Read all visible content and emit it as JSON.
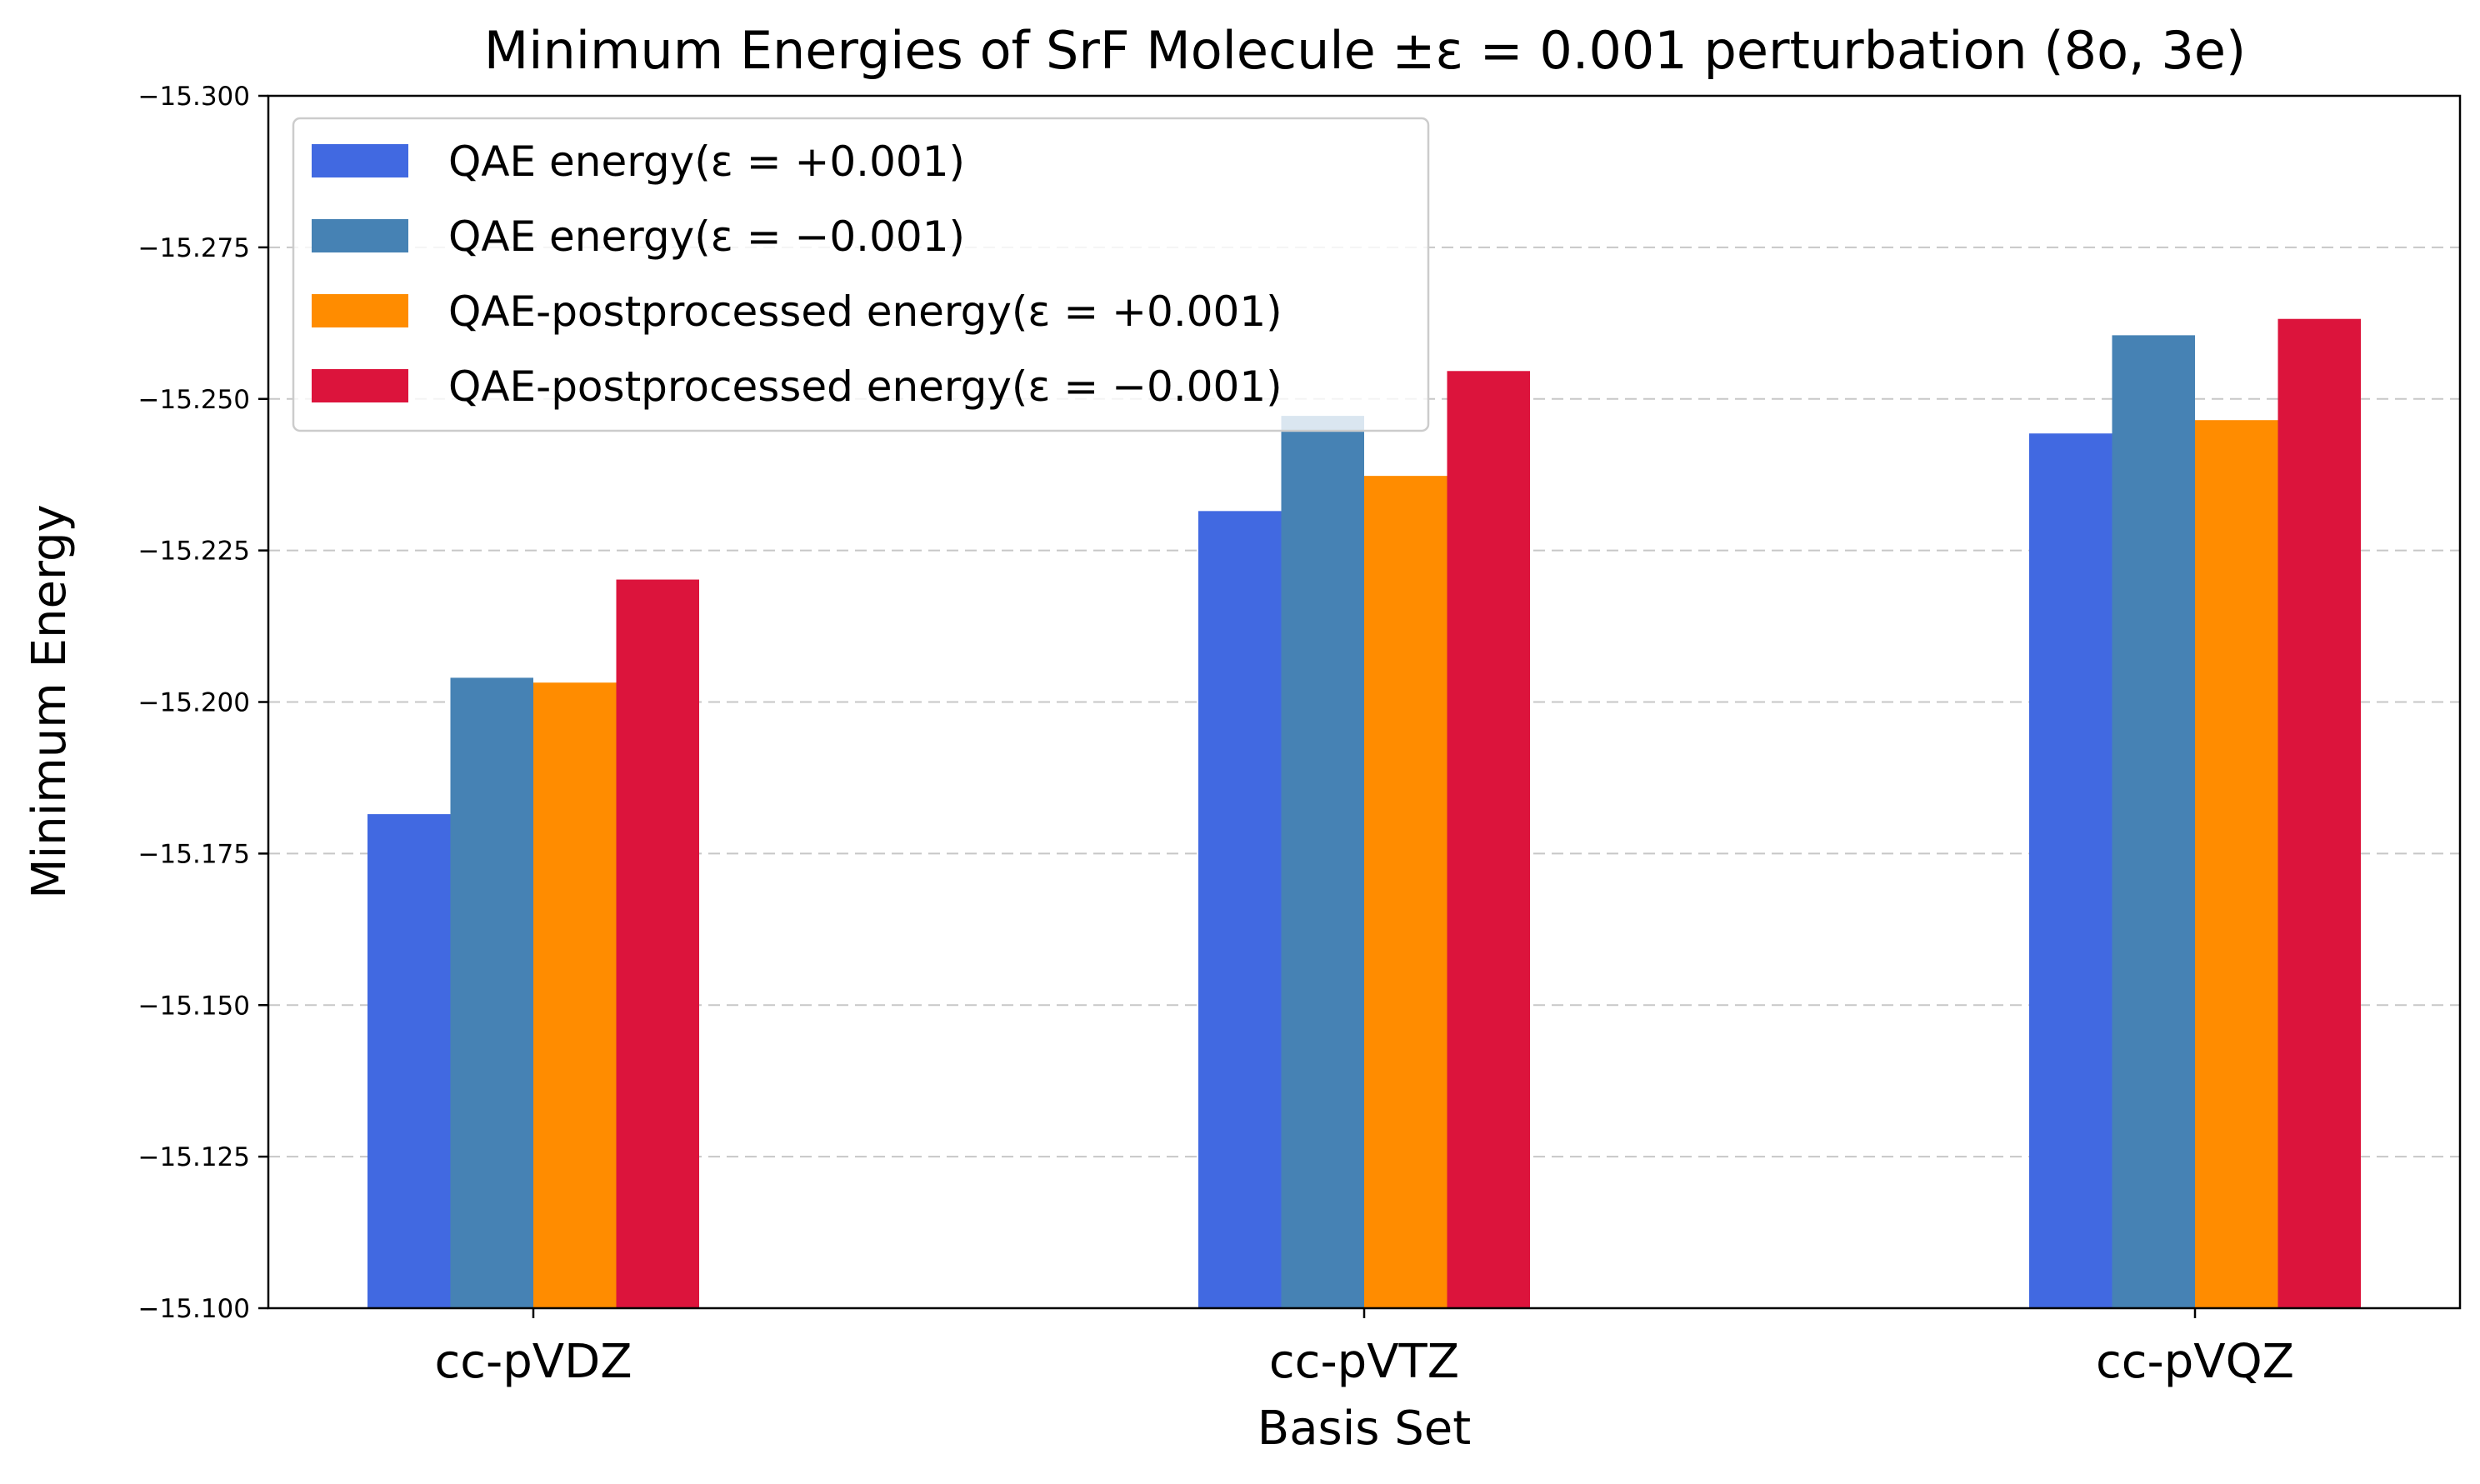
{
  "chart_data": {
    "type": "bar",
    "title": "Minimum Energies of SrF Molecule ±ε = 0.001 perturbation (8o, 3e)",
    "xlabel": "Basis Set",
    "ylabel": "Minimum Energy",
    "categories": [
      "cc-pVDZ",
      "cc-pVTZ",
      "cc-pVQZ"
    ],
    "ylim": [
      -15.1,
      -15.3
    ],
    "yticks": [
      "−15.300",
      "−15.275",
      "−15.250",
      "−15.225",
      "−15.200",
      "−15.175",
      "−15.150",
      "−15.125",
      "−15.100"
    ],
    "ytick_values": [
      -15.3,
      -15.275,
      -15.25,
      -15.225,
      -15.2,
      -15.175,
      -15.15,
      -15.125,
      -15.1
    ],
    "grid": "y-dashed",
    "legend_position": "upper-left",
    "series": [
      {
        "name": "QAE energy(ε = +0.001)",
        "color": "#4169E1",
        "values": [
          -15.1815,
          -15.2315,
          -15.2443
        ]
      },
      {
        "name": "QAE energy(ε = −0.001)",
        "color": "#4682B4",
        "values": [
          -15.204,
          -15.2472,
          -15.2605
        ]
      },
      {
        "name": "QAE-postprocessed energy(ε = +0.001)",
        "color": "#FF8C00",
        "values": [
          -15.2032,
          -15.2373,
          -15.2465
        ]
      },
      {
        "name": "QAE-postprocessed energy(ε = −0.001)",
        "color": "#DC143C",
        "values": [
          -15.2202,
          -15.2546,
          -15.2632
        ]
      }
    ]
  }
}
